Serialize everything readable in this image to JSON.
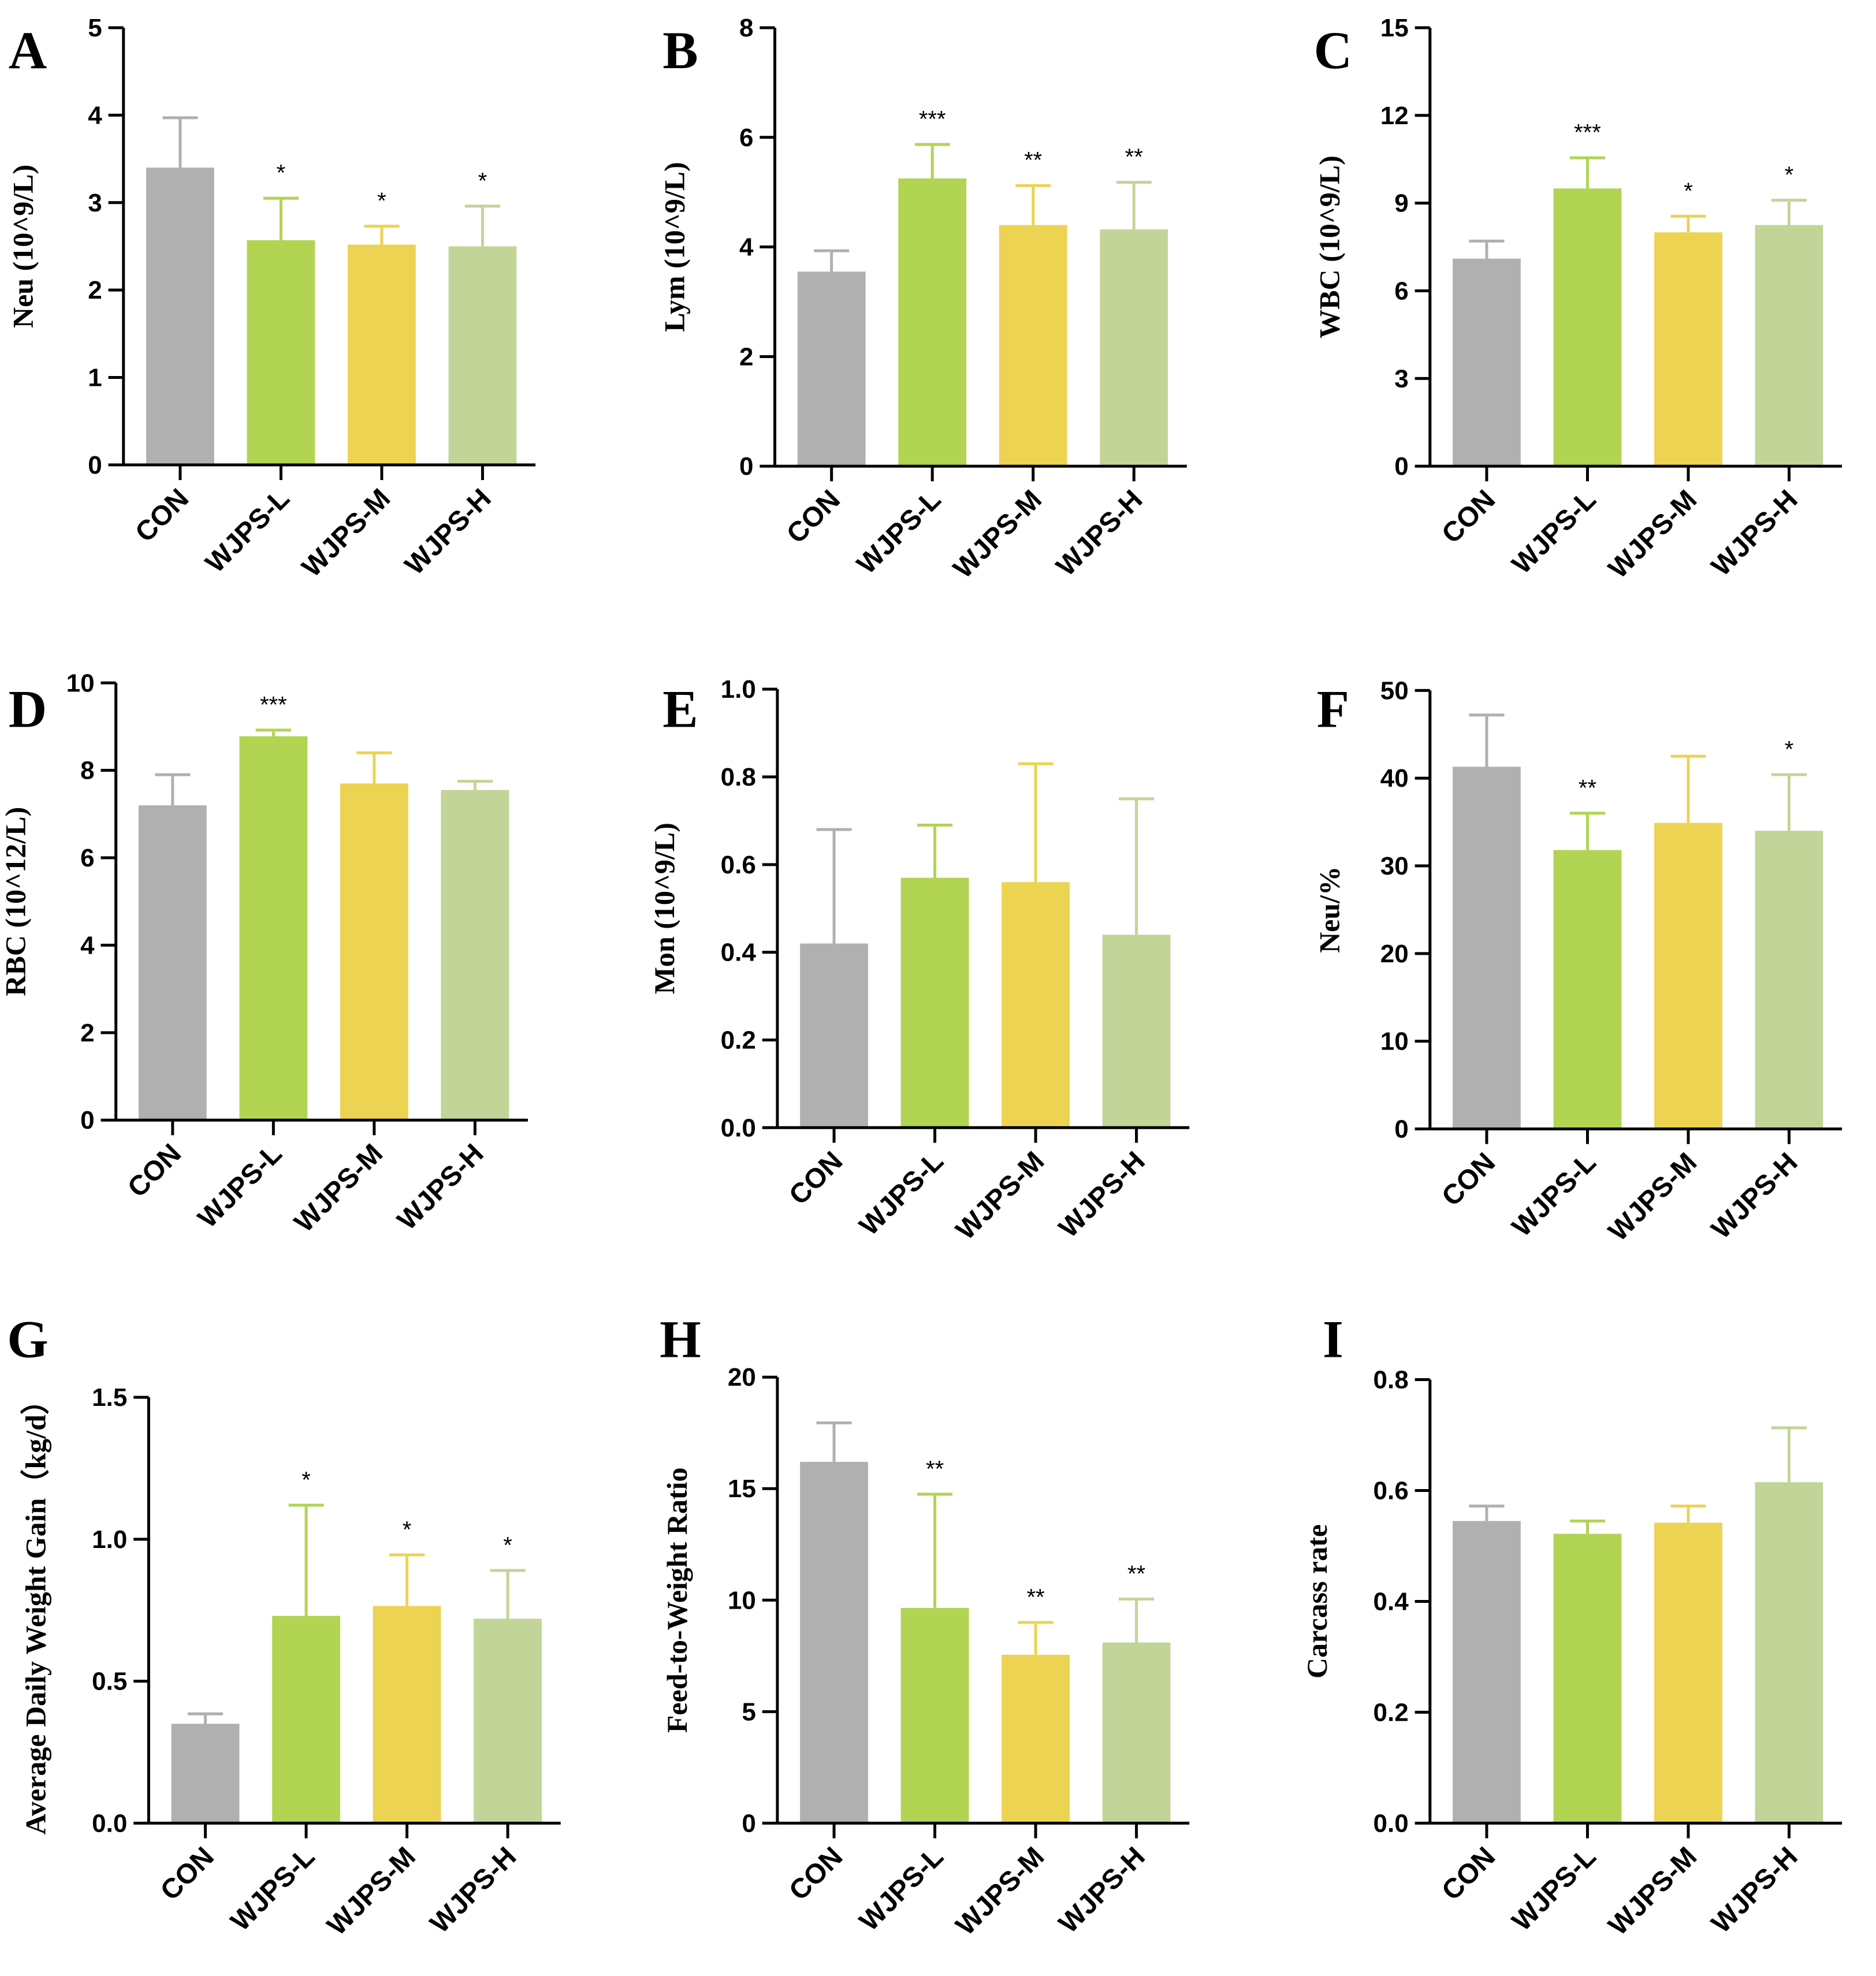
{
  "colors": {
    "CON": "#b0b0b0",
    "WJPS-L": "#b2d453",
    "WJPS-M": "#ecd352",
    "WJPS-H": "#c3d498"
  },
  "chart_data": [
    {
      "panel": "A",
      "type": "bar",
      "categories": [
        "CON",
        "WJPS-L",
        "WJPS-M",
        "WJPS-H"
      ],
      "values": [
        3.4,
        2.57,
        2.52,
        2.5
      ],
      "error_upper": [
        3.97,
        3.05,
        2.73,
        2.96
      ],
      "significance": [
        "",
        "*",
        "*",
        "*"
      ],
      "ylabel": "Neu (10^9/L)",
      "ylim": [
        0,
        5
      ],
      "yticks": [
        "0",
        "1",
        "2",
        "3",
        "4",
        "5"
      ]
    },
    {
      "panel": "B",
      "type": "bar",
      "categories": [
        "CON",
        "WJPS-L",
        "WJPS-M",
        "WJPS-H"
      ],
      "values": [
        3.55,
        5.25,
        4.4,
        4.32
      ],
      "error_upper": [
        3.93,
        5.87,
        5.12,
        5.18
      ],
      "significance": [
        "",
        "***",
        "**",
        "**"
      ],
      "ylabel": "Lym (10^9/L)",
      "ylim": [
        0,
        8
      ],
      "yticks": [
        "0",
        "2",
        "4",
        "6",
        "8"
      ]
    },
    {
      "panel": "C",
      "type": "bar",
      "categories": [
        "CON",
        "WJPS-L",
        "WJPS-M",
        "WJPS-H"
      ],
      "values": [
        7.1,
        9.5,
        8.0,
        8.25
      ],
      "error_upper": [
        7.7,
        10.55,
        8.55,
        9.1
      ],
      "significance": [
        "",
        "***",
        "*",
        "*"
      ],
      "ylabel": "WBC (10^9/L)",
      "ylim": [
        0,
        15
      ],
      "yticks": [
        "0",
        "3",
        "6",
        "9",
        "12",
        "15"
      ]
    },
    {
      "panel": "D",
      "type": "bar",
      "categories": [
        "CON",
        "WJPS-L",
        "WJPS-M",
        "WJPS-H"
      ],
      "values": [
        7.2,
        8.78,
        7.7,
        7.55
      ],
      "error_upper": [
        7.9,
        8.92,
        8.4,
        7.75
      ],
      "significance": [
        "",
        "***",
        "",
        ""
      ],
      "ylabel": "RBC (10^12/L)",
      "ylim": [
        0,
        10
      ],
      "yticks": [
        "0",
        "2",
        "4",
        "6",
        "8",
        "10"
      ]
    },
    {
      "panel": "E",
      "type": "bar",
      "categories": [
        "CON",
        "WJPS-L",
        "WJPS-M",
        "WJPS-H"
      ],
      "values": [
        0.42,
        0.57,
        0.56,
        0.44
      ],
      "error_upper": [
        0.68,
        0.69,
        0.83,
        0.75
      ],
      "significance": [
        "",
        "",
        "",
        ""
      ],
      "ylabel": "Mon (10^9/L)",
      "ylim": [
        0,
        1.0
      ],
      "yticks": [
        "0.0",
        "0.2",
        "0.4",
        "0.6",
        "0.8",
        "1.0"
      ]
    },
    {
      "panel": "F",
      "type": "bar",
      "categories": [
        "CON",
        "WJPS-L",
        "WJPS-M",
        "WJPS-H"
      ],
      "values": [
        41.3,
        31.8,
        34.9,
        34.0
      ],
      "error_upper": [
        47.2,
        36.0,
        42.5,
        40.4
      ],
      "significance": [
        "",
        "**",
        "",
        "*"
      ],
      "ylabel": "Neu/%",
      "ylim": [
        0,
        50
      ],
      "yticks": [
        "0",
        "10",
        "20",
        "30",
        "40",
        "50"
      ]
    },
    {
      "panel": "G",
      "type": "bar",
      "categories": [
        "CON",
        "WJPS-L",
        "WJPS-M",
        "WJPS-H"
      ],
      "values": [
        0.35,
        0.73,
        0.765,
        0.72
      ],
      "error_upper": [
        0.385,
        1.12,
        0.945,
        0.89
      ],
      "significance": [
        "",
        "*",
        "*",
        "*"
      ],
      "ylabel": "Average Daily Weight Gain（kg/d）",
      "ylim": [
        0,
        1.5
      ],
      "yticks": [
        "0.0",
        "0.5",
        "1.0",
        "1.5"
      ]
    },
    {
      "panel": "H",
      "type": "bar",
      "categories": [
        "CON",
        "WJPS-L",
        "WJPS-M",
        "WJPS-H"
      ],
      "values": [
        16.2,
        9.65,
        7.55,
        8.1
      ],
      "error_upper": [
        17.95,
        14.75,
        9.0,
        10.05
      ],
      "significance": [
        "",
        "**",
        "**",
        "**"
      ],
      "ylabel": "Feed-to-Weight Ratio",
      "ylim": [
        0,
        20
      ],
      "yticks": [
        "0",
        "5",
        "10",
        "15",
        "20"
      ]
    },
    {
      "panel": "I",
      "type": "bar",
      "categories": [
        "CON",
        "WJPS-L",
        "WJPS-M",
        "WJPS-H"
      ],
      "values": [
        0.545,
        0.522,
        0.542,
        0.615
      ],
      "error_upper": [
        0.572,
        0.545,
        0.572,
        0.713
      ],
      "significance": [
        "",
        "",
        "",
        ""
      ],
      "ylabel": "Carcass rate",
      "ylim": [
        0,
        0.8
      ],
      "yticks": [
        "0.0",
        "0.2",
        "0.4",
        "0.6",
        "0.8"
      ]
    }
  ]
}
